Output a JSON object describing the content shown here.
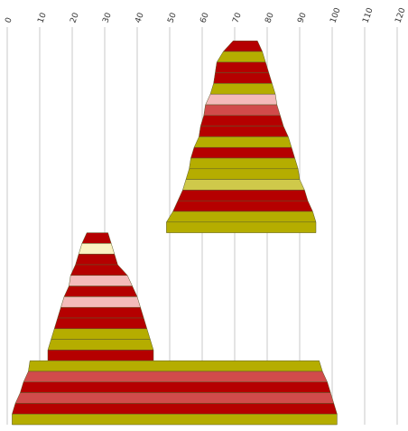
{
  "chart_data": {
    "type": "area",
    "title": "",
    "xlabel": "",
    "ylabel": "",
    "x_axis_position": "top",
    "tick_label_rotation": "-70deg",
    "xlim": [
      0,
      120
    ],
    "x_ticks": [
      0,
      10,
      20,
      30,
      40,
      50,
      60,
      70,
      80,
      90,
      100,
      110,
      120
    ],
    "x_tick_labels": [
      "0",
      "10",
      "20",
      "30",
      "40",
      "50",
      "60",
      "70",
      "80",
      "90",
      "100",
      "110",
      "120"
    ],
    "grid": "vertical",
    "legend": "none",
    "colors": {
      "red": "#b50000",
      "olive": "#b5ad00",
      "lightolive": "#cfc94a",
      "pink": "#f4baba",
      "salmon": "#d14b4b",
      "cream": "#fbf2c2"
    },
    "bands": [
      {
        "left": 69.5,
        "right": 77.0,
        "color": "red"
      },
      {
        "left": 66.5,
        "right": 78.5,
        "color": "olive"
      },
      {
        "left": 64.5,
        "right": 79.5,
        "color": "red"
      },
      {
        "left": 64.0,
        "right": 80.5,
        "color": "red"
      },
      {
        "left": 63.5,
        "right": 81.5,
        "color": "olive"
      },
      {
        "left": 62.5,
        "right": 82.5,
        "color": "pink"
      },
      {
        "left": 61.0,
        "right": 83.0,
        "color": "salmon"
      },
      {
        "left": 60.5,
        "right": 84.0,
        "color": "red"
      },
      {
        "left": 59.5,
        "right": 85.0,
        "color": "red"
      },
      {
        "left": 59.0,
        "right": 86.5,
        "color": "olive"
      },
      {
        "left": 57.5,
        "right": 87.5,
        "color": "red"
      },
      {
        "left": 56.5,
        "right": 88.5,
        "color": "olive"
      },
      {
        "left": 56.0,
        "right": 89.5,
        "color": "olive"
      },
      {
        "left": 55.0,
        "right": 90.0,
        "color": "lightolive"
      },
      {
        "left": 54.0,
        "right": 91.5,
        "color": "red"
      },
      {
        "left": 52.5,
        "right": 92.5,
        "color": "red"
      },
      {
        "left": 51.0,
        "right": 94.0,
        "color": "olive"
      },
      {
        "left": 49.0,
        "right": 95.0,
        "color": "olive"
      },
      {
        "left": 24.5,
        "right": 31.0,
        "color": "red"
      },
      {
        "left": 23.0,
        "right": 32.0,
        "color": "cream"
      },
      {
        "left": 22.0,
        "right": 33.0,
        "color": "red"
      },
      {
        "left": 21.0,
        "right": 34.0,
        "color": "red"
      },
      {
        "left": 19.5,
        "right": 37.0,
        "color": "pink"
      },
      {
        "left": 19.0,
        "right": 38.5,
        "color": "red"
      },
      {
        "left": 17.5,
        "right": 40.0,
        "color": "pink"
      },
      {
        "left": 16.5,
        "right": 41.0,
        "color": "red"
      },
      {
        "left": 15.5,
        "right": 42.0,
        "color": "red"
      },
      {
        "left": 14.5,
        "right": 43.0,
        "color": "olive"
      },
      {
        "left": 13.5,
        "right": 44.0,
        "color": "olive"
      },
      {
        "left": 12.5,
        "right": 45.0,
        "color": "red"
      },
      {
        "left": 7.0,
        "right": 96.0,
        "color": "olive"
      },
      {
        "left": 6.5,
        "right": 97.0,
        "color": "salmon"
      },
      {
        "left": 5.0,
        "right": 98.5,
        "color": "red"
      },
      {
        "left": 4.0,
        "right": 99.5,
        "color": "salmon"
      },
      {
        "left": 2.5,
        "right": 100.5,
        "color": "red"
      },
      {
        "left": 1.5,
        "right": 101.5,
        "color": "olive"
      }
    ]
  }
}
